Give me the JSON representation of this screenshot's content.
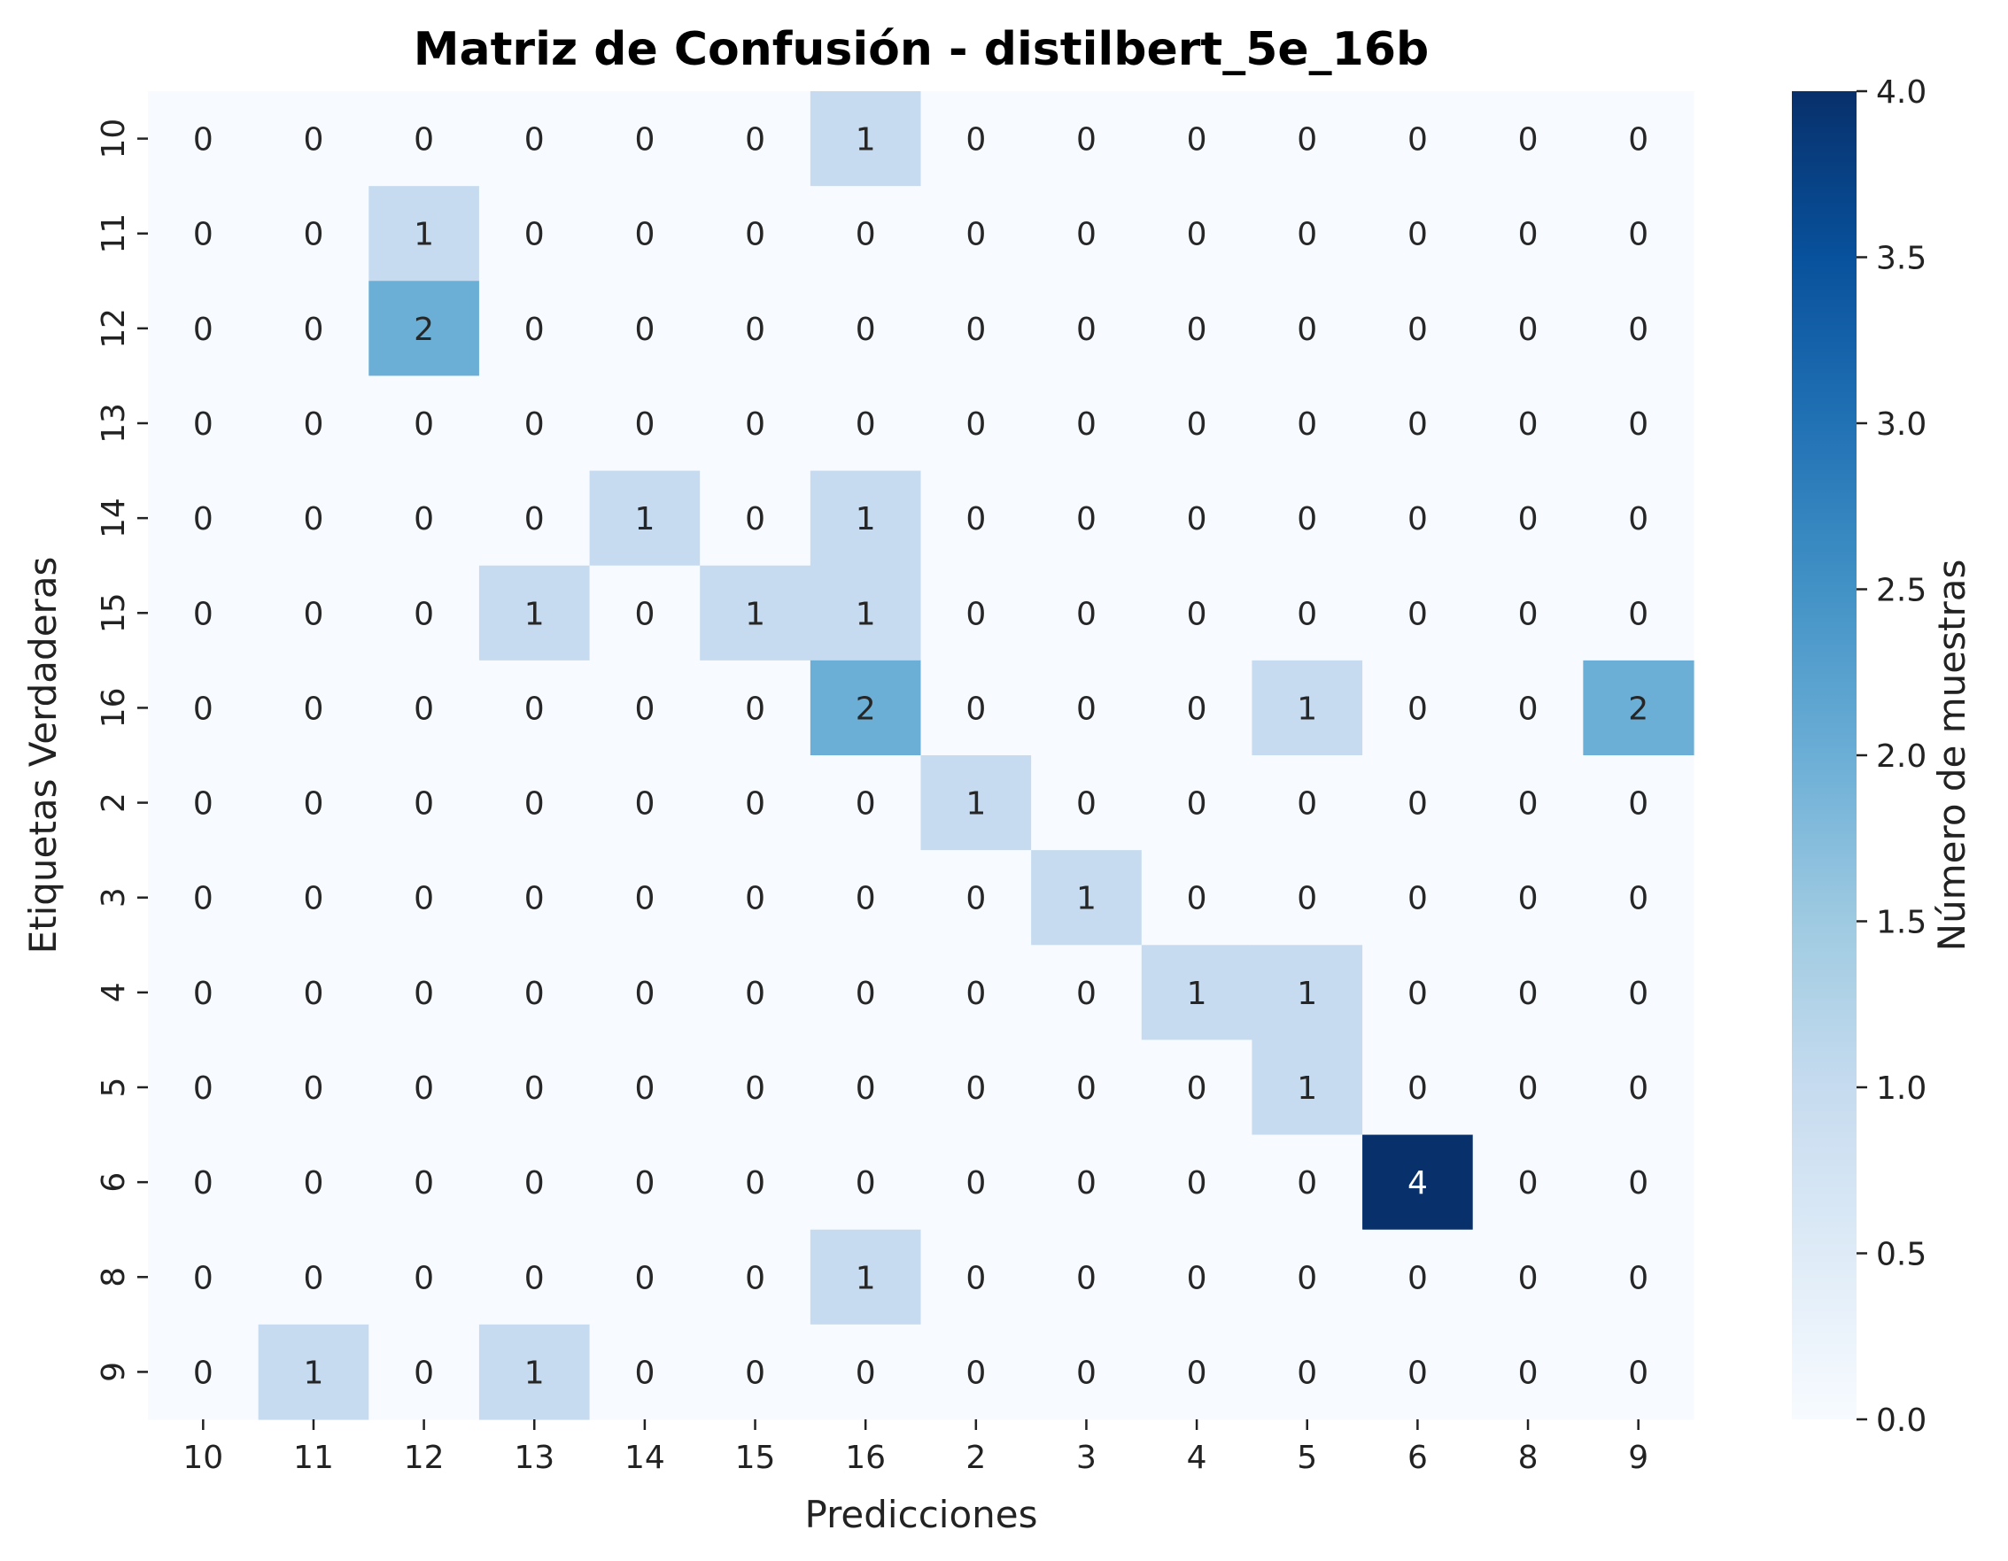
{
  "chart_data": {
    "type": "heatmap",
    "title": "Matriz de Confusión - distilbert_5e_16b",
    "xlabel": "Predicciones",
    "ylabel": "Etiquetas Verdaderas",
    "x_categories": [
      "10",
      "11",
      "12",
      "13",
      "14",
      "15",
      "16",
      "2",
      "3",
      "4",
      "5",
      "6",
      "8",
      "9"
    ],
    "y_categories": [
      "10",
      "11",
      "12",
      "13",
      "14",
      "15",
      "16",
      "2",
      "3",
      "4",
      "5",
      "6",
      "8",
      "9"
    ],
    "values": [
      [
        0,
        0,
        0,
        0,
        0,
        0,
        1,
        0,
        0,
        0,
        0,
        0,
        0,
        0
      ],
      [
        0,
        0,
        1,
        0,
        0,
        0,
        0,
        0,
        0,
        0,
        0,
        0,
        0,
        0
      ],
      [
        0,
        0,
        2,
        0,
        0,
        0,
        0,
        0,
        0,
        0,
        0,
        0,
        0,
        0
      ],
      [
        0,
        0,
        0,
        0,
        0,
        0,
        0,
        0,
        0,
        0,
        0,
        0,
        0,
        0
      ],
      [
        0,
        0,
        0,
        0,
        1,
        0,
        1,
        0,
        0,
        0,
        0,
        0,
        0,
        0
      ],
      [
        0,
        0,
        0,
        1,
        0,
        1,
        1,
        0,
        0,
        0,
        0,
        0,
        0,
        0
      ],
      [
        0,
        0,
        0,
        0,
        0,
        0,
        2,
        0,
        0,
        0,
        1,
        0,
        0,
        2
      ],
      [
        0,
        0,
        0,
        0,
        0,
        0,
        0,
        1,
        0,
        0,
        0,
        0,
        0,
        0
      ],
      [
        0,
        0,
        0,
        0,
        0,
        0,
        0,
        0,
        1,
        0,
        0,
        0,
        0,
        0
      ],
      [
        0,
        0,
        0,
        0,
        0,
        0,
        0,
        0,
        0,
        1,
        1,
        0,
        0,
        0
      ],
      [
        0,
        0,
        0,
        0,
        0,
        0,
        0,
        0,
        0,
        0,
        1,
        0,
        0,
        0
      ],
      [
        0,
        0,
        0,
        0,
        0,
        0,
        0,
        0,
        0,
        0,
        0,
        4,
        0,
        0
      ],
      [
        0,
        0,
        0,
        0,
        0,
        0,
        1,
        0,
        0,
        0,
        0,
        0,
        0,
        0
      ],
      [
        0,
        1,
        0,
        1,
        0,
        0,
        0,
        0,
        0,
        0,
        0,
        0,
        0,
        0
      ]
    ],
    "colorbar": {
      "label": "Número de muestras",
      "range": [
        0.0,
        4.0
      ],
      "ticks": [
        "0.0",
        "0.5",
        "1.0",
        "1.5",
        "2.0",
        "2.5",
        "3.0",
        "3.5",
        "4.0"
      ],
      "colormap": "Blues"
    },
    "colors": {
      "low": "#f7fbff",
      "high": "#08306b"
    }
  }
}
